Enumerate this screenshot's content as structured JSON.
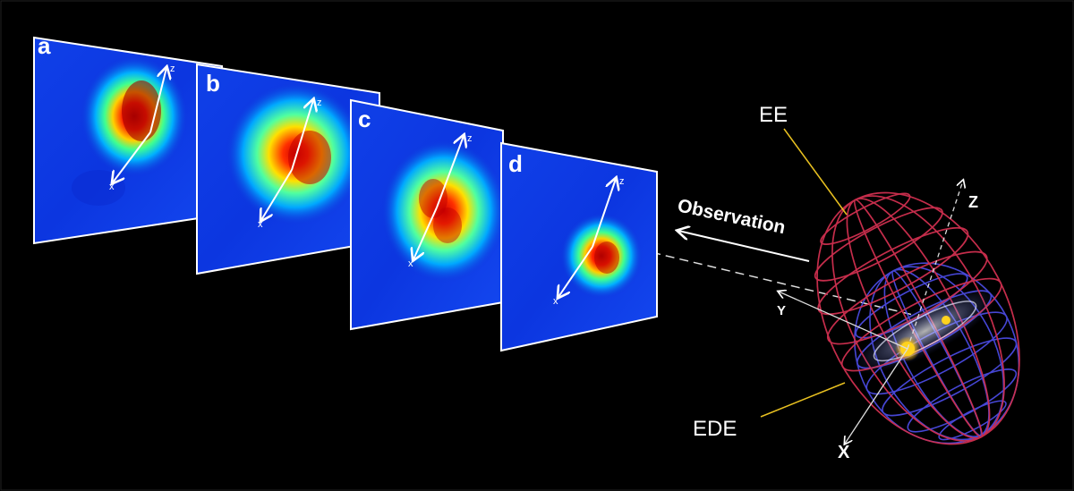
{
  "panels": [
    {
      "letter": "a",
      "axis_x": "x",
      "axis_z": "z"
    },
    {
      "letter": "b",
      "axis_x": "x",
      "axis_z": "z"
    },
    {
      "letter": "c",
      "axis_x": "x",
      "axis_z": "z"
    },
    {
      "letter": "d",
      "axis_x": "x",
      "axis_z": "z"
    }
  ],
  "arrow_label": "Observation",
  "ellipsoid": {
    "outer_label": "EE",
    "inner_label": "EDE",
    "axis_z": "Z",
    "axis_y": "Y",
    "axis_x": "X"
  },
  "colors": {
    "background": "#000000",
    "outer_ellipsoid": "#d03050",
    "inner_ellipsoid": "#4040d0",
    "leader_line": "#e8c020",
    "star": "#ffd21e"
  }
}
